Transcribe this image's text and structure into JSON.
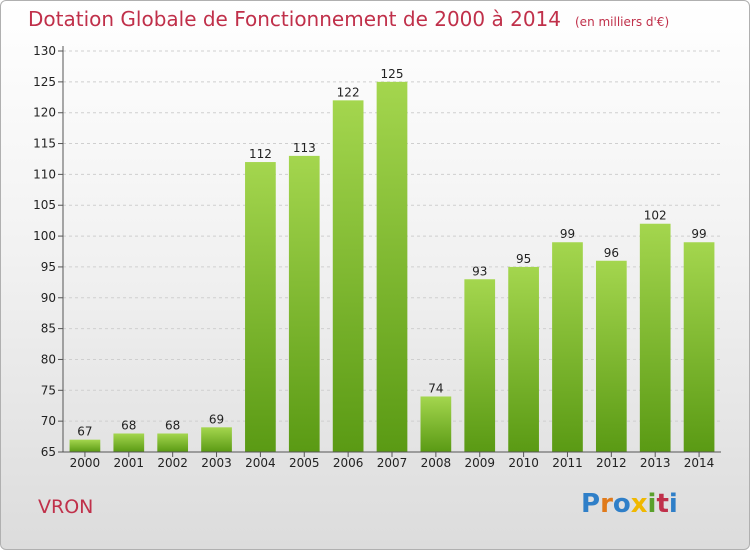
{
  "header": {
    "title": "Dotation Globale de Fonctionnement de 2000 à 2014",
    "subtitle": "(en milliers d'€)"
  },
  "footer": {
    "commune": "VRON",
    "logo_letters": [
      "P",
      "r",
      "o",
      "x",
      "i",
      "t",
      "i"
    ]
  },
  "chart_data": {
    "type": "bar",
    "title": "Dotation Globale de Fonctionnement de 2000 à 2014",
    "subtitle": "(en milliers d'€)",
    "xlabel": "",
    "ylabel": "",
    "categories": [
      "2000",
      "2001",
      "2002",
      "2003",
      "2004",
      "2005",
      "2006",
      "2007",
      "2008",
      "2009",
      "2010",
      "2011",
      "2012",
      "2013",
      "2014"
    ],
    "values": [
      67,
      68,
      68,
      69,
      112,
      113,
      122,
      125,
      74,
      93,
      95,
      99,
      96,
      102,
      99
    ],
    "ylim": [
      65,
      130
    ],
    "yticks": [
      65,
      70,
      75,
      80,
      85,
      90,
      95,
      100,
      105,
      110,
      115,
      120,
      125,
      130
    ],
    "grid": true,
    "legend": "none",
    "colors": {
      "bar_top": "#a4d64e",
      "bar_bottom": "#5a9a14",
      "title": "#c0304a"
    }
  }
}
